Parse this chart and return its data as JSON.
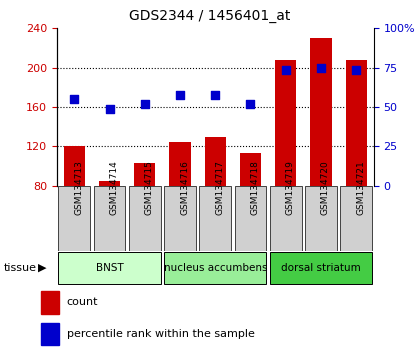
{
  "title": "GDS2344 / 1456401_at",
  "categories": [
    "GSM134713",
    "GSM134714",
    "GSM134715",
    "GSM134716",
    "GSM134717",
    "GSM134718",
    "GSM134719",
    "GSM134720",
    "GSM134721"
  ],
  "bar_values": [
    120,
    85,
    103,
    125,
    130,
    113,
    208,
    230,
    208
  ],
  "scatter_values": [
    168,
    158,
    163,
    172,
    172,
    163,
    198,
    200,
    198
  ],
  "bar_color": "#cc0000",
  "scatter_color": "#0000cc",
  "ylim_left": [
    80,
    240
  ],
  "ylim_right": [
    0,
    100
  ],
  "yticks_left": [
    80,
    120,
    160,
    200,
    240
  ],
  "yticks_right": [
    0,
    25,
    50,
    75,
    100
  ],
  "ytick_labels_right": [
    "0",
    "25",
    "50",
    "75",
    "100%"
  ],
  "tissue_groups": [
    {
      "label": "BNST",
      "start": 0,
      "end": 3,
      "color": "#ccffcc"
    },
    {
      "label": "nucleus accumbens",
      "start": 3,
      "end": 6,
      "color": "#99ee99"
    },
    {
      "label": "dorsal striatum",
      "start": 6,
      "end": 9,
      "color": "#44cc44"
    }
  ],
  "tissue_label": "tissue",
  "legend_count_label": "count",
  "legend_pct_label": "percentile rank within the sample",
  "tick_label_color_left": "#cc0000",
  "tick_label_color_right": "#0000cc",
  "xlabel_gray": "#d0d0d0",
  "hline_vals": [
    120,
    160,
    200
  ]
}
